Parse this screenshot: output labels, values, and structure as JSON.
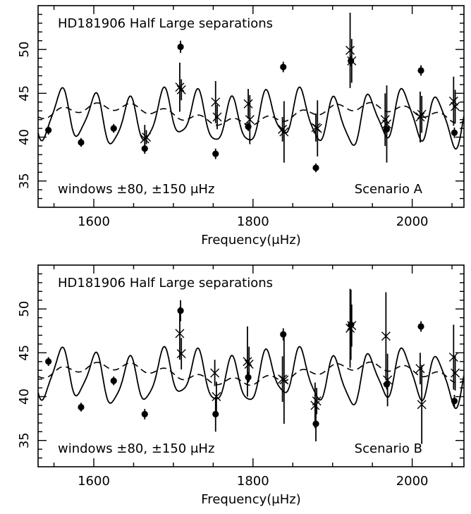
{
  "chart_data": [
    {
      "type": "scatter",
      "title": "HD181906 Half Large separations",
      "annotation_left": "windows ±80, ±150 μHz",
      "annotation_right": "Scenario A",
      "xlabel": "Frequency(μHz)",
      "ylabel": "",
      "xlim": [
        1530,
        2065
      ],
      "ylim": [
        32,
        55
      ],
      "xticks": [
        1600,
        1800,
        2000
      ],
      "yticks": [
        35,
        40,
        45,
        50
      ],
      "dots": [
        {
          "x": 1543,
          "y": 40.8,
          "err": 0.5
        },
        {
          "x": 1584,
          "y": 39.4,
          "err": 0.5
        },
        {
          "x": 1625,
          "y": 41.0,
          "err": 0.5
        },
        {
          "x": 1664,
          "y": 38.7,
          "err": 0.6
        },
        {
          "x": 1709,
          "y": 50.3,
          "err": 0.7
        },
        {
          "x": 1753,
          "y": 38.1,
          "err": 0.6
        },
        {
          "x": 1794,
          "y": 41.2,
          "err": 0.5
        },
        {
          "x": 1838,
          "y": 48.0,
          "err": 0.6
        },
        {
          "x": 1879,
          "y": 36.5,
          "err": 0.5
        },
        {
          "x": 1923,
          "y": 48.7,
          "err": 0.6
        },
        {
          "x": 1968,
          "y": 40.9,
          "err": 0.6
        },
        {
          "x": 2011,
          "y": 47.6,
          "err": 0.6
        },
        {
          "x": 2053,
          "y": 40.5,
          "err": 0.6
        }
      ],
      "crosses": [
        {
          "x": 1664,
          "y": 39.8,
          "err": 1.6
        },
        {
          "x": 1666,
          "y": 40.0,
          "err": 0.8
        },
        {
          "x": 1708,
          "y": 45.7,
          "err": 2.8
        },
        {
          "x": 1710,
          "y": 45.4,
          "err": 1.2
        },
        {
          "x": 1753,
          "y": 44.0,
          "err": 2.4
        },
        {
          "x": 1755,
          "y": 42.3,
          "err": 1.4
        },
        {
          "x": 1794,
          "y": 43.8,
          "err": 1.7
        },
        {
          "x": 1796,
          "y": 42.0,
          "err": 2.8
        },
        {
          "x": 1837,
          "y": 40.9,
          "err": 1.4
        },
        {
          "x": 1839,
          "y": 40.6,
          "err": 3.5
        },
        {
          "x": 1879,
          "y": 41.1,
          "err": 1.6
        },
        {
          "x": 1881,
          "y": 41.0,
          "err": 3.2
        },
        {
          "x": 1922,
          "y": 49.9,
          "err": 4.3
        },
        {
          "x": 1924,
          "y": 48.7,
          "err": 2.5
        },
        {
          "x": 1966,
          "y": 42.0,
          "err": 3.0
        },
        {
          "x": 1968,
          "y": 41.5,
          "err": 4.4
        },
        {
          "x": 2010,
          "y": 42.3,
          "err": 2.9
        },
        {
          "x": 2012,
          "y": 42.6,
          "err": 2.1
        },
        {
          "x": 2052,
          "y": 44.1,
          "err": 2.8
        },
        {
          "x": 2054,
          "y": 43.5,
          "err": 1.9
        }
      ]
    },
    {
      "type": "scatter",
      "title": "HD181906 Half Large separations",
      "annotation_left": "windows ±80, ±150 μHz",
      "annotation_right": "Scenario B",
      "xlabel": "Frequency(μHz)",
      "ylabel": "",
      "xlim": [
        1530,
        2065
      ],
      "ylim": [
        32,
        55
      ],
      "xticks": [
        1600,
        1800,
        2000
      ],
      "yticks": [
        35,
        40,
        45,
        50
      ],
      "dots": [
        {
          "x": 1543,
          "y": 44.0,
          "err": 0.5
        },
        {
          "x": 1584,
          "y": 38.8,
          "err": 0.5
        },
        {
          "x": 1625,
          "y": 41.8,
          "err": 0.5
        },
        {
          "x": 1664,
          "y": 38.0,
          "err": 0.6
        },
        {
          "x": 1709,
          "y": 49.8,
          "err": 1.2
        },
        {
          "x": 1753,
          "y": 38.0,
          "err": 2.0
        },
        {
          "x": 1794,
          "y": 42.2,
          "err": 0.6
        },
        {
          "x": 1838,
          "y": 47.1,
          "err": 0.7
        },
        {
          "x": 1879,
          "y": 36.9,
          "err": 2.0
        },
        {
          "x": 1923,
          "y": 48.2,
          "err": 4.0
        },
        {
          "x": 1968,
          "y": 41.4,
          "err": 0.6
        },
        {
          "x": 2011,
          "y": 48.0,
          "err": 0.6
        },
        {
          "x": 2053,
          "y": 39.5,
          "err": 0.7
        }
      ],
      "crosses": [
        {
          "x": 1708,
          "y": 47.2,
          "err": 3.0
        },
        {
          "x": 1710,
          "y": 44.9,
          "err": 1.8
        },
        {
          "x": 1752,
          "y": 42.7,
          "err": 1.5
        },
        {
          "x": 1754,
          "y": 40.0,
          "err": 1.7
        },
        {
          "x": 1793,
          "y": 44.0,
          "err": 4.0
        },
        {
          "x": 1795,
          "y": 43.7,
          "err": 2.0
        },
        {
          "x": 1837,
          "y": 42.0,
          "err": 2.6
        },
        {
          "x": 1839,
          "y": 41.9,
          "err": 5.0
        },
        {
          "x": 1878,
          "y": 39.0,
          "err": 2.6
        },
        {
          "x": 1880,
          "y": 39.5,
          "err": 1.5
        },
        {
          "x": 1922,
          "y": 47.8,
          "err": 4.5
        },
        {
          "x": 1924,
          "y": 48.1,
          "err": 2.4
        },
        {
          "x": 1967,
          "y": 46.9,
          "err": 5.0
        },
        {
          "x": 1969,
          "y": 41.9,
          "err": 3.0
        },
        {
          "x": 2010,
          "y": 43.2,
          "err": 1.8
        },
        {
          "x": 2012,
          "y": 39.1,
          "err": 4.5
        },
        {
          "x": 2052,
          "y": 44.5,
          "err": 3.7
        },
        {
          "x": 2054,
          "y": 42.7,
          "err": 2.0
        }
      ]
    }
  ]
}
